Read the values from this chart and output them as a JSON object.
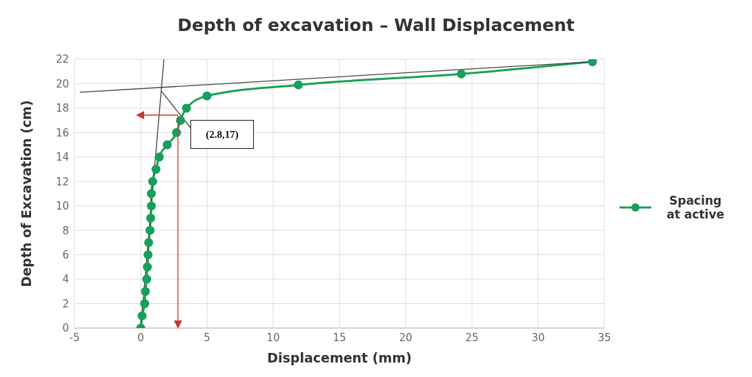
{
  "chart_data": {
    "type": "line",
    "title": "Depth of excavation – Wall Displacement",
    "xlabel": "Displacement (mm)",
    "ylabel": "Depth of Excavation (cm)",
    "xlim": [
      -5,
      35
    ],
    "xticks": [
      -5,
      0,
      5,
      10,
      15,
      20,
      25,
      30,
      35
    ],
    "ylim": [
      0,
      22
    ],
    "yticks": [
      0,
      2,
      4,
      6,
      8,
      10,
      12,
      14,
      16,
      18,
      20,
      22
    ],
    "grid": true,
    "legend": "right",
    "line_style": "solid",
    "series": [
      {
        "name": "Spacing at active",
        "color": "#17a05a",
        "marker": "circle",
        "x": [
          0,
          0.1,
          0.3,
          0.35,
          0.45,
          0.5,
          0.55,
          0.6,
          0.7,
          0.75,
          0.8,
          0.8,
          0.9,
          1.15,
          1.4,
          2.0,
          2.7,
          3.0,
          3.45,
          5.0,
          11.9,
          24.2,
          34.1
        ],
        "values": [
          0,
          1,
          2,
          3,
          4,
          5,
          6,
          7,
          8,
          9,
          10,
          11,
          12,
          13,
          14,
          15,
          16,
          17,
          18,
          19,
          19.9,
          20.8,
          21.8
        ]
      },
      {
        "color": "#404040",
        "marker": "none",
        "x": [
          0,
          1.75
        ],
        "values": [
          0,
          22
        ]
      },
      {
        "color": "#404040",
        "marker": "none",
        "x": [
          -4.6,
          34.1
        ],
        "values": [
          19.3,
          21.8
        ]
      },
      {
        "color": "#404040",
        "marker": "none",
        "x": [
          1.55,
          3.75
        ],
        "values": [
          19.4,
          16.4
        ]
      }
    ],
    "annotations": [
      "(2.8,17)"
    ]
  }
}
